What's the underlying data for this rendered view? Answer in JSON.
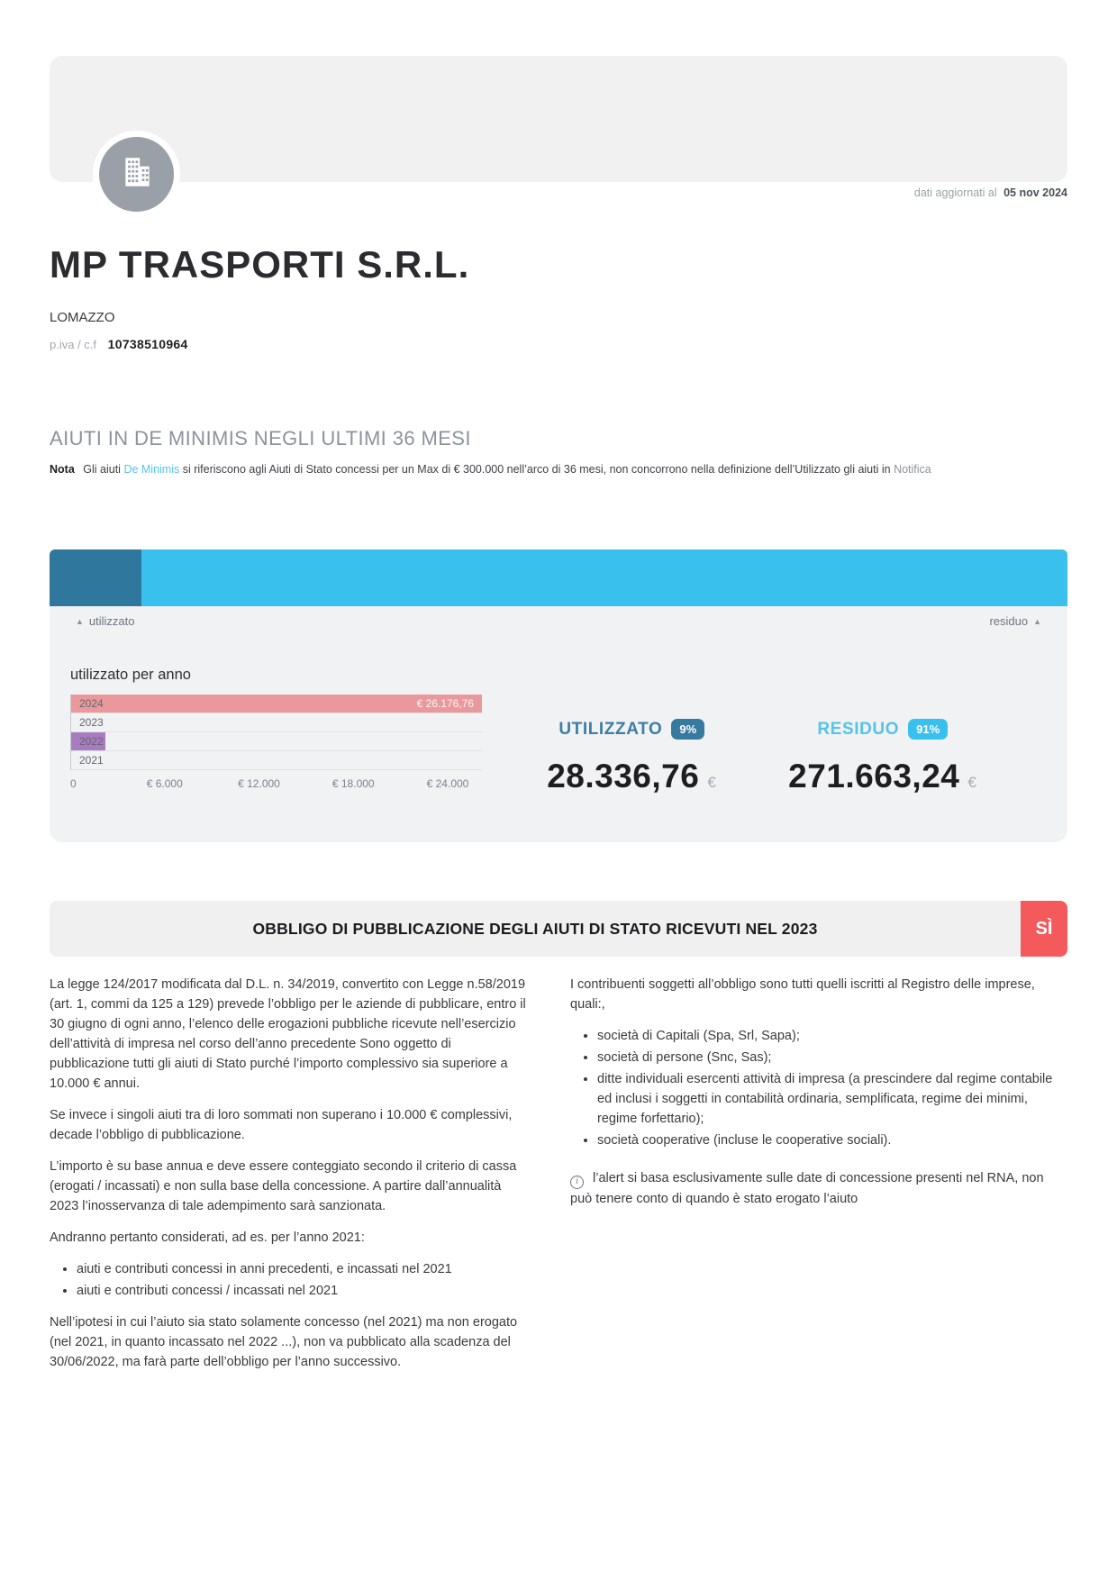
{
  "header": {
    "updated_prefix": "dati aggiornati al",
    "updated_date": "05 nov 2024",
    "company_name": "MP TRASPORTI S.R.L.",
    "city": "LOMAZZO",
    "vat_label": "p.iva / c.f",
    "vat_value": "10738510964"
  },
  "section": {
    "title": "AIUTI IN DE MINIMIS NEGLI ULTIMI 36 MESI",
    "nota_label": "Nota",
    "nota_before_link": "Gli aiuti",
    "nota_link": "De Minimis",
    "nota_middle": "si riferiscono agli Aiuti di Stato concessi per un Max di € 300.000 nell’arco di 36 mesi, non concorrono nella definizione dell’Utilizzato gli aiuti in",
    "nota_link2": "Notifica",
    "link_color": "#54c5ec",
    "link2_color": "#8d939c"
  },
  "gauge": {
    "used_label": "utilizzato",
    "residual_label": "residuo",
    "sort_icon": "▲",
    "used_pct": 9,
    "residual_pct": 91,
    "used_color": "#30779e",
    "residual_color": "#3ac0ed"
  },
  "chart_data": {
    "type": "bar",
    "orientation": "horizontal",
    "title": "utilizzato per anno",
    "categories": [
      "2024",
      "2023",
      "2022",
      "2021"
    ],
    "values": [
      26176.76,
      0,
      2160.0,
      0
    ],
    "value_labels": [
      "€ 26.176,76",
      "",
      "",
      ""
    ],
    "bar_colors": [
      "#e9999c",
      null,
      "#a97cc1",
      null
    ],
    "xlim": [
      0,
      26176.76
    ],
    "tick_values": [
      0,
      6000,
      12000,
      18000,
      24000
    ],
    "tick_labels": [
      "0",
      "€ 6.000",
      "€ 12.000",
      "€ 18.000",
      "€ 24.000"
    ],
    "grid": false,
    "legend": false
  },
  "stats": {
    "used": {
      "label": "UTILIZZATO",
      "pct": "9%",
      "value": "28.336,76",
      "currency": "€",
      "text_color": "#3e7da3",
      "badge_color": "#37799f"
    },
    "residual": {
      "label": "RESIDUO",
      "pct": "91%",
      "value": "271.663,24",
      "currency": "€",
      "text_color": "#55c3ea",
      "badge_color": "#3ac0ed"
    }
  },
  "obbligo": {
    "title": "OBBLIGO DI PUBBLICAZIONE DEGLI AIUTI DI STATO RICEVUTI NEL 2023",
    "badge_label": "SÌ",
    "badge_color": "#f4595b"
  },
  "body": {
    "left": {
      "p1": "La legge 124/2017 modificata dal D.L. n. 34/2019, convertito con Legge n.58/2019 (art. 1, commi da 125 a 129) prevede l’obbligo per le aziende di pubblicare, entro il 30 giugno di ogni anno, l’elenco delle erogazioni pubbliche ricevute nell’esercizio dell’attività di impresa nel corso dell’anno precedente Sono oggetto di pubblicazione tutti gli aiuti di Stato purché l’importo complessivo sia superiore a 10.000 € annui.",
      "p2": "Se invece i singoli aiuti tra di loro sommati non superano i 10.000 € complessivi, decade l’obbligo di pubblicazione.",
      "p3": "L’importo è su base annua e deve essere conteggiato secondo il criterio di cassa (erogati / incassati) e non sulla base della concessione. A partire dall’annualità 2023 l’inosservanza di tale adempimento sarà sanzionata.",
      "p4": "Andranno pertanto considerati, ad es. per l’anno 2021:",
      "list": [
        "aiuti e contributi concessi in anni precedenti, e incassati nel 2021",
        "aiuti e contributi concessi / incassati nel 2021"
      ],
      "p5": "Nell’ipotesi in cui l’aiuto sia stato solamente concesso (nel 2021) ma non erogato (nel 2021, in quanto incassato nel 2022 ...), non va pubblicato alla scadenza del 30/06/2022, ma farà parte dell’obbligo per l’anno successivo."
    },
    "right": {
      "intro": "I contribuenti soggetti all’obbligo sono tutti quelli iscritti al Registro delle imprese, quali:,",
      "list": [
        "società di Capitali (Spa, Srl, Sapa);",
        "società di persone (Snc, Sas);",
        "ditte individuali esercenti attività di impresa (a prescindere dal regime contabile ed inclusi i soggetti in contabilità ordinaria, semplificata, regime dei minimi, regime forfettario);",
        "società cooperative (incluse le cooperative sociali)."
      ],
      "note_icon": "i",
      "note": "l’alert si basa esclusivamente sulle date di concessione presenti nel RNA, non può tenere conto di quando è stato erogato l’aiuto"
    }
  },
  "icons": {
    "avatar": "building-icon",
    "note": "info-icon",
    "sort": "sort-arrow-icon"
  }
}
